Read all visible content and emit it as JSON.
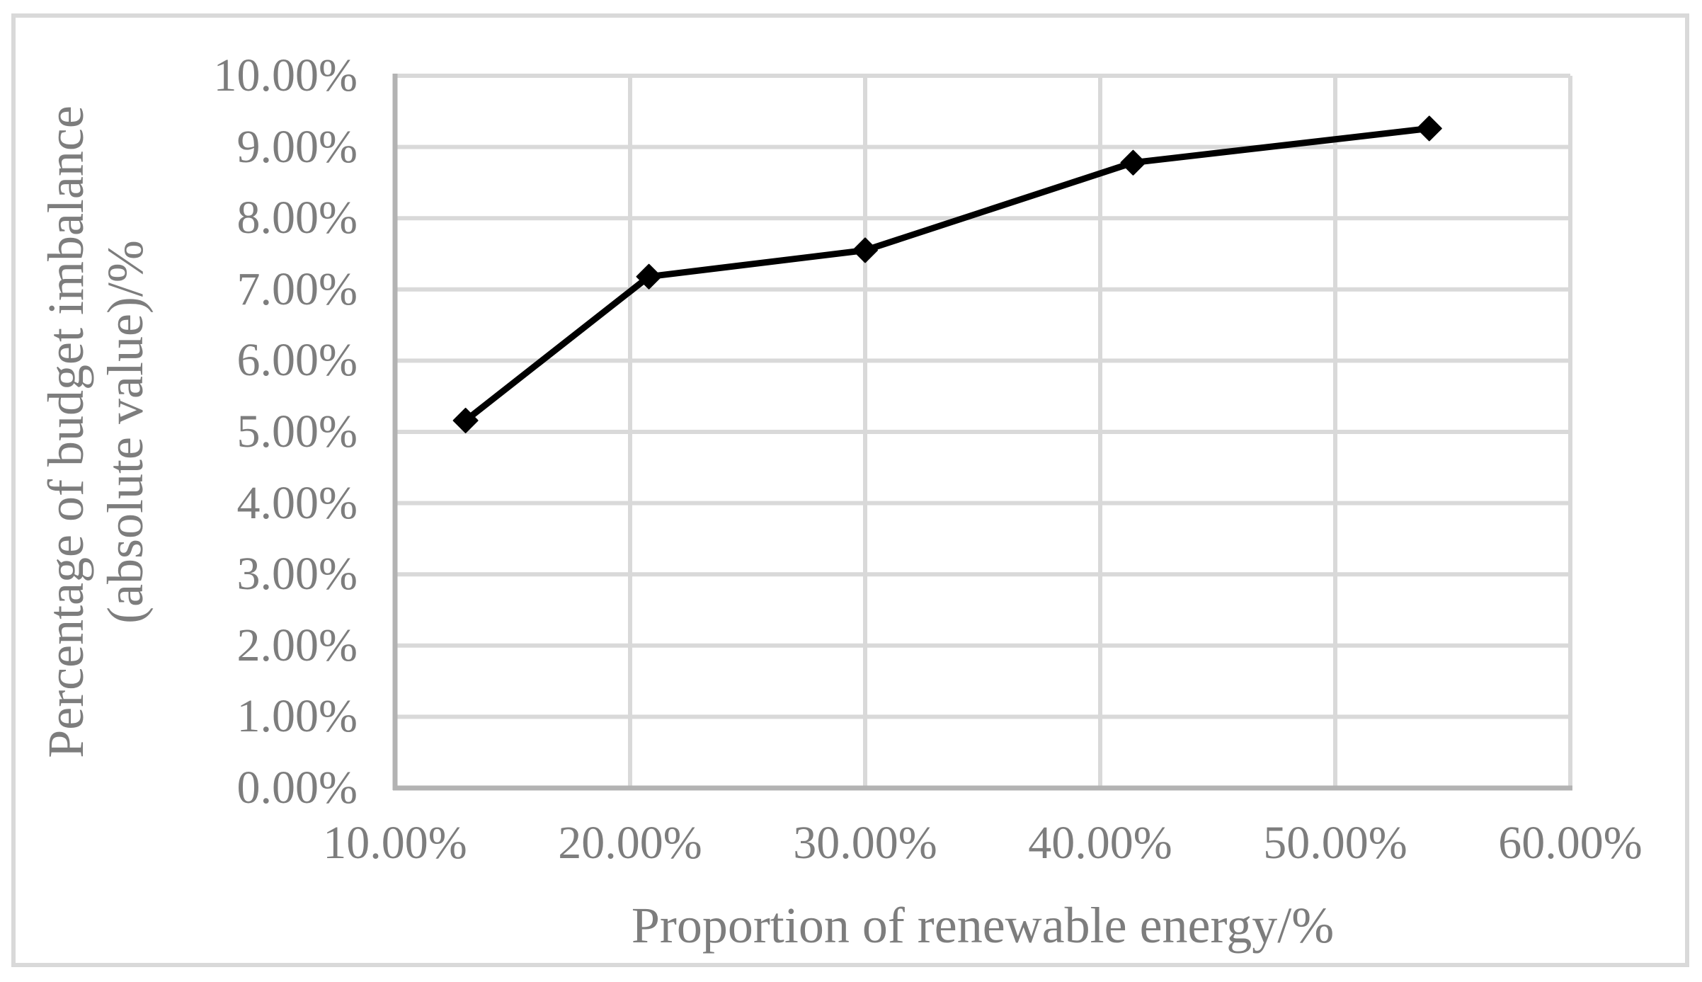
{
  "chart_data": {
    "type": "line",
    "title": "",
    "xlabel": "Proportion of renewable energy/%",
    "ylabel_lines": [
      "Percentage of budget imbalance",
      "(absolute value)/%"
    ],
    "series": [
      {
        "name": "Percentage of budget imbalance (absolute value)",
        "x": [
          13.0,
          20.8,
          30.0,
          41.4,
          54.0
        ],
        "y": [
          5.16,
          7.18,
          7.55,
          8.78,
          9.26
        ]
      }
    ],
    "xlim": [
      10,
      60
    ],
    "ylim": [
      0,
      10
    ],
    "x_tick_values": [
      10,
      20,
      30,
      40,
      50,
      60
    ],
    "x_tick_labels": [
      "10.00%",
      "20.00%",
      "30.00%",
      "40.00%",
      "50.00%",
      "60.00%"
    ],
    "y_tick_values": [
      0,
      1,
      2,
      3,
      4,
      5,
      6,
      7,
      8,
      9,
      10
    ],
    "y_tick_labels": [
      "0.00%",
      "1.00%",
      "2.00%",
      "3.00%",
      "4.00%",
      "5.00%",
      "6.00%",
      "7.00%",
      "8.00%",
      "9.00%",
      "10.00%"
    ],
    "grid": true,
    "legend_position": "none",
    "marker": "diamond",
    "marker_size": 34,
    "line_width": 9
  },
  "colors": {
    "background": "#ffffff",
    "figure_border": "#d9d9d9",
    "gridline": "#d9d9d9",
    "axis_line": "#b3b3b3",
    "tick_text": "#7d7d7d",
    "series_line": "#000000",
    "marker_fill": "#000000"
  }
}
